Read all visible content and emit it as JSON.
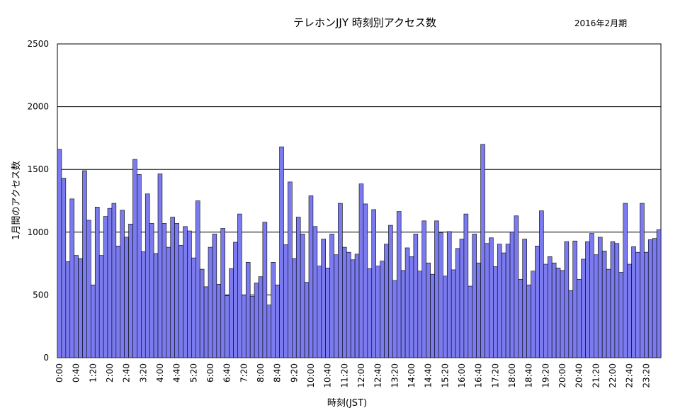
{
  "chart_data": {
    "type": "bar",
    "title": "テレホンJJY 時刻別アクセス数",
    "subtitle": "2016年2月期",
    "xlabel": "時刻(JST)",
    "ylabel": "1月間のアクセス数",
    "ylim": [
      0,
      2500
    ],
    "yticks": [
      0,
      500,
      1000,
      1500,
      2000,
      2500
    ],
    "grid": true,
    "legend": "none",
    "bar_color": "#7b7bef",
    "tick_labels": [
      "0:00",
      "0:40",
      "1:20",
      "2:00",
      "2:40",
      "3:20",
      "4:00",
      "4:40",
      "5:20",
      "6:00",
      "6:40",
      "7:20",
      "8:00",
      "8:40",
      "9:20",
      "10:00",
      "10:40",
      "11:20",
      "12:00",
      "12:40",
      "13:20",
      "14:00",
      "14:40",
      "15:20",
      "16:00",
      "16:40",
      "17:20",
      "18:00",
      "18:40",
      "19:20",
      "20:00",
      "20:40",
      "21:20",
      "22:00",
      "22:40",
      "23:20"
    ],
    "values": [
      1660,
      1430,
      765,
      1265,
      815,
      790,
      1490,
      1095,
      580,
      1200,
      815,
      1125,
      1190,
      1230,
      890,
      1175,
      960,
      1065,
      1580,
      1460,
      845,
      1305,
      1070,
      830,
      1465,
      1070,
      880,
      1120,
      1070,
      895,
      1045,
      1010,
      795,
      1250,
      705,
      565,
      880,
      985,
      585,
      1030,
      495,
      710,
      920,
      1145,
      500,
      760,
      490,
      595,
      645,
      1080,
      420,
      760,
      580,
      1680,
      900,
      1400,
      790,
      1120,
      985,
      600,
      1290,
      1045,
      730,
      945,
      715,
      985,
      820,
      1230,
      880,
      840,
      780,
      825,
      1385,
      1225,
      710,
      1180,
      730,
      770,
      905,
      1055,
      615,
      1165,
      695,
      875,
      805,
      985,
      690,
      1090,
      755,
      665,
      1090,
      995,
      650,
      1005,
      700,
      870,
      945,
      1145,
      570,
      985,
      755,
      1700,
      910,
      955,
      725,
      905,
      835,
      905,
      1000,
      1130,
      625,
      945,
      580,
      690,
      890,
      1170,
      745,
      805,
      755,
      715,
      695,
      925,
      535,
      930,
      625,
      785,
      925,
      990,
      820,
      960,
      850,
      705,
      925,
      910,
      680,
      1230,
      745,
      885,
      840,
      1230,
      840,
      940,
      950,
      1020
    ]
  }
}
